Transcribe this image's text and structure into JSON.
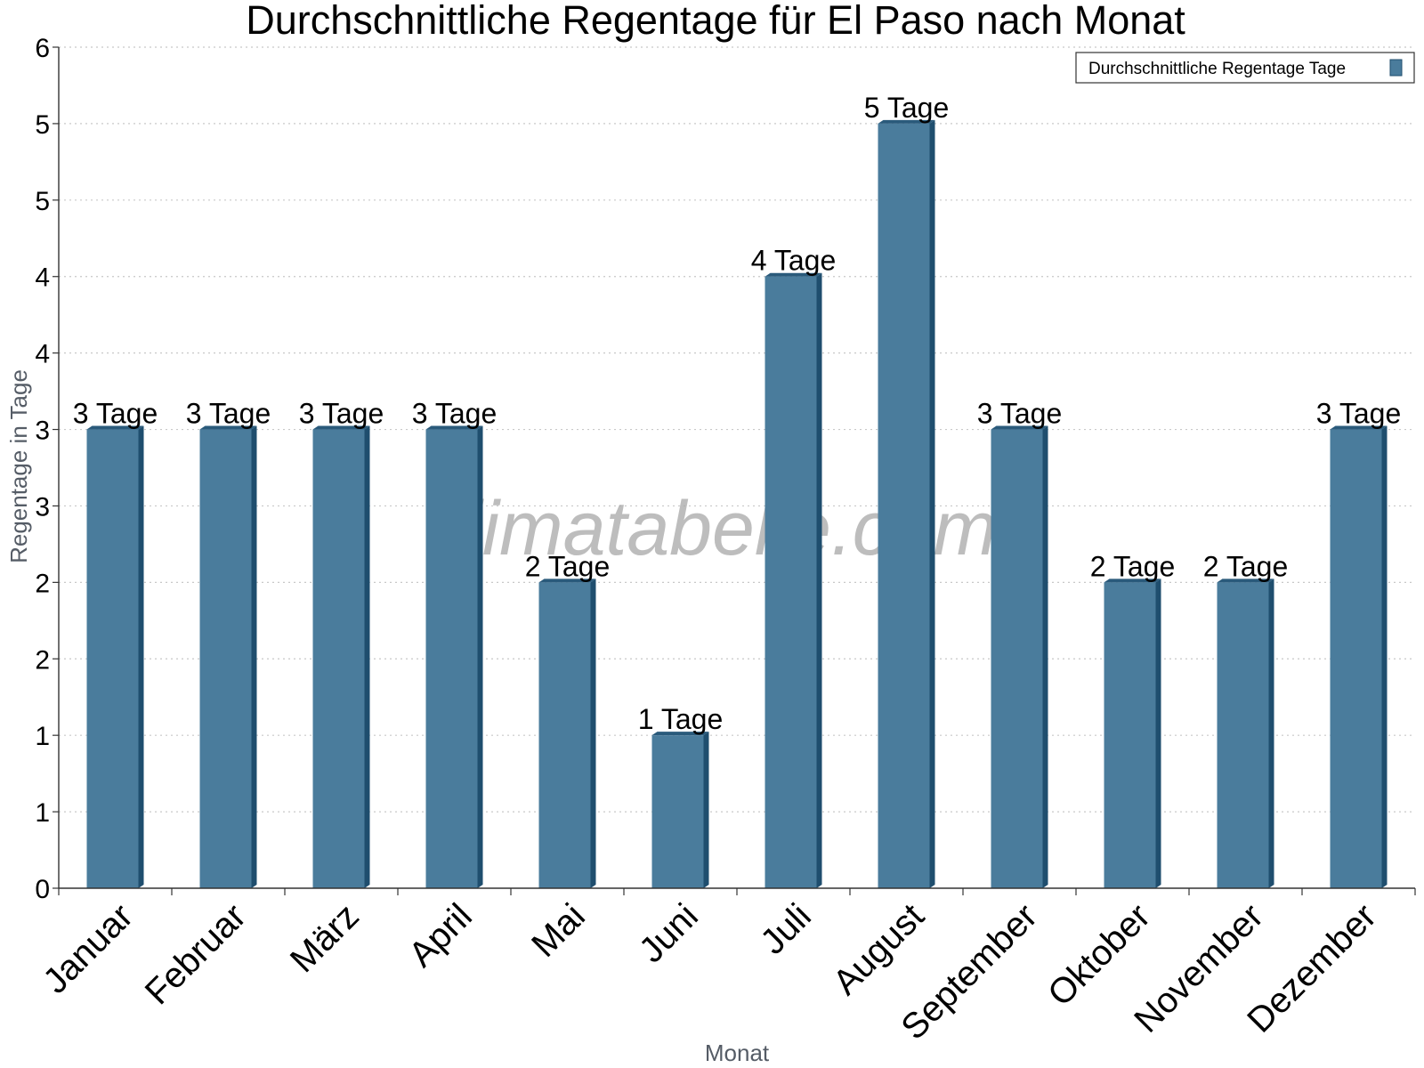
{
  "chart_data": {
    "type": "bar",
    "title": "Durchschnittliche Regentage für El Paso nach Monat",
    "xlabel": "Monat",
    "ylabel": "Regentage in Tage",
    "categories": [
      "Januar",
      "Februar",
      "März",
      "April",
      "Mai",
      "Juni",
      "Juli",
      "August",
      "September",
      "Oktober",
      "November",
      "Dezember"
    ],
    "series": [
      {
        "name": "Durchschnittliche Regentage Tage",
        "values": [
          3,
          3,
          3,
          3,
          2,
          1,
          4,
          5,
          3,
          2,
          2,
          3
        ],
        "data_labels": [
          "3 Tage",
          "3 Tage",
          "3 Tage",
          "3 Tage",
          "2 Tage",
          "1 Tage",
          "4 Tage",
          "5 Tage",
          "3 Tage",
          "2 Tage",
          "2 Tage",
          "3 Tage"
        ]
      }
    ],
    "ylim": [
      0,
      5.5
    ],
    "y_tick_values": [
      0,
      0.5,
      1,
      1.5,
      2,
      2.5,
      3,
      3.5,
      4,
      4.5,
      5,
      5.5
    ],
    "y_tick_labels": [
      "0",
      "1",
      "1",
      "2",
      "2",
      "3",
      "3",
      "4",
      "4",
      "5",
      "5",
      "6"
    ],
    "grid": true,
    "legend_position": "top-right",
    "colors": {
      "bar": "#4a7c9c",
      "bar_side": "#1f4e6e",
      "bar_top": "#2a5a7b",
      "grid": "#c8c8c8",
      "axis": "#333333"
    },
    "watermark": "klimatabelle.com"
  }
}
